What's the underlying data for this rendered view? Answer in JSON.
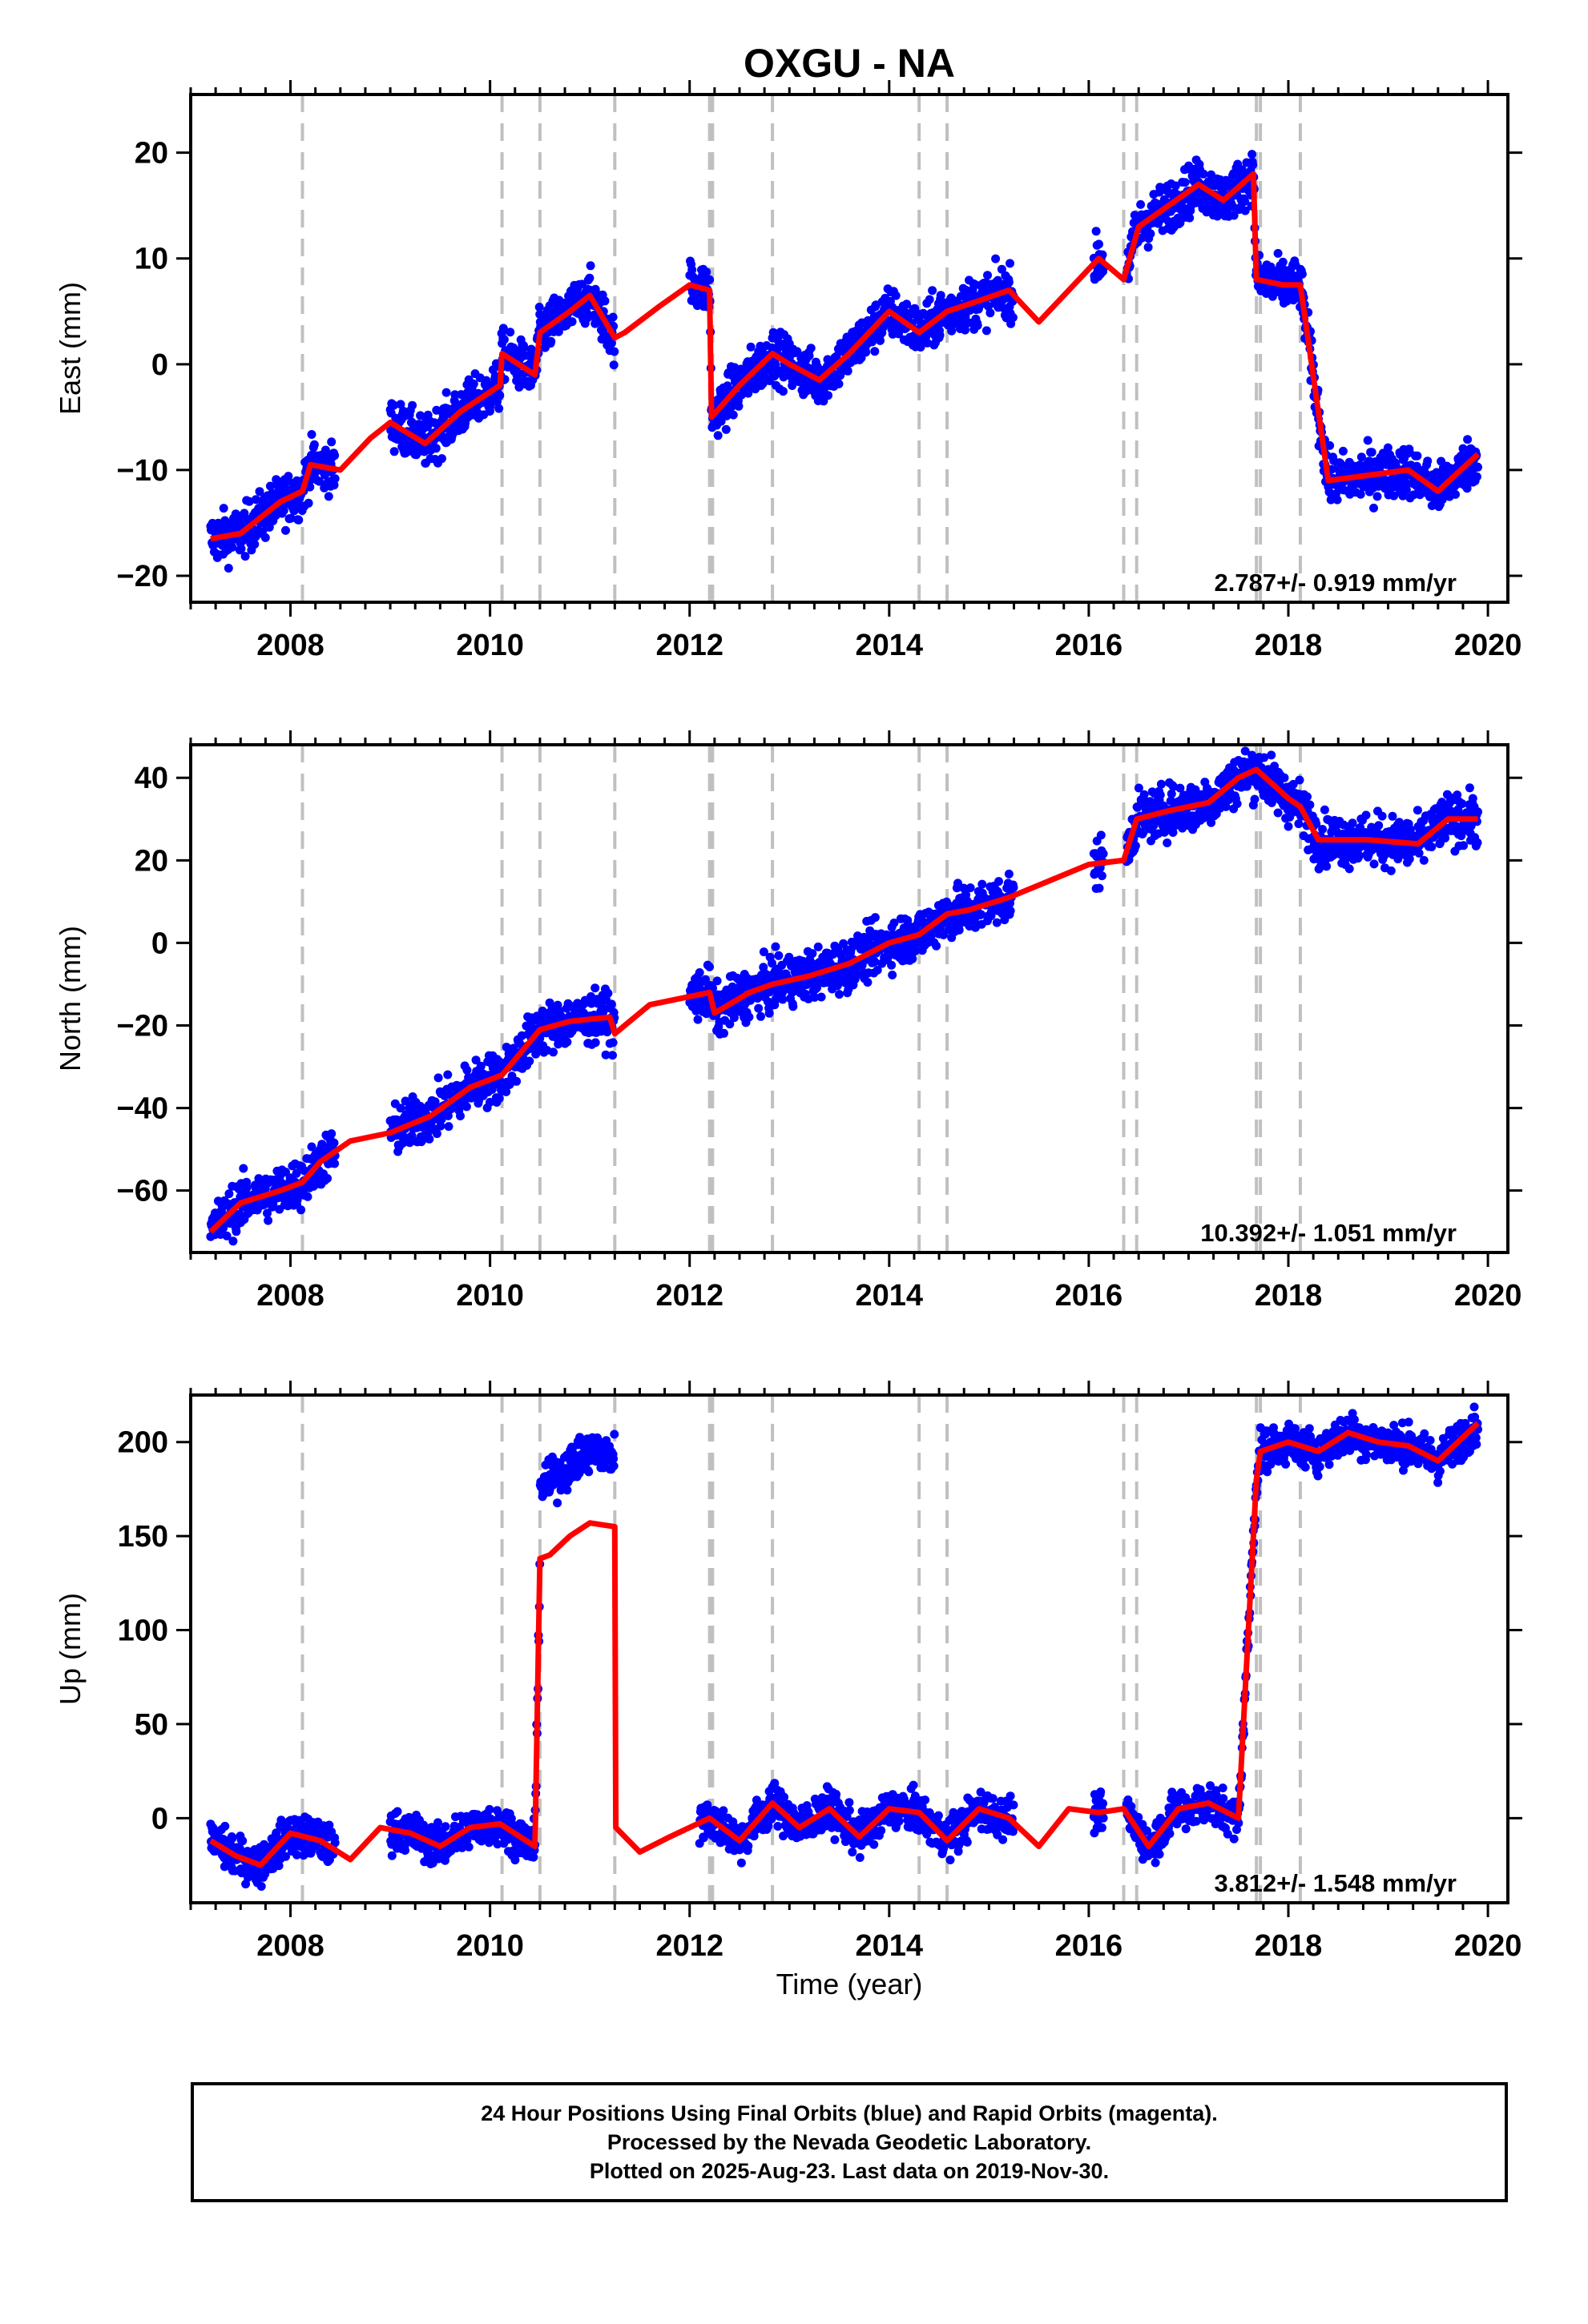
{
  "chart_data": {
    "type": "scatter",
    "title": "OXGU - NA",
    "xlabel": "Time (year)",
    "xlim": [
      2007.0,
      2020.2
    ],
    "xticks": [
      2008,
      2010,
      2012,
      2014,
      2016,
      2018,
      2020
    ],
    "xtick_labels": [
      "2008",
      "2010",
      "2012",
      "2014",
      "2016",
      "2018",
      "2020"
    ],
    "event_lines": [
      2008.12,
      2010.12,
      2010.5,
      2011.25,
      2012.2,
      2012.23,
      2012.83,
      2014.3,
      2014.58,
      2016.35,
      2016.48,
      2017.68,
      2017.72,
      2018.12
    ],
    "colors": {
      "observations": "#0000ff",
      "model": "#ff0000",
      "event_lines": "#c0c0c0"
    },
    "panels": [
      {
        "ylabel": "East (mm)",
        "ylim": [
          -22.5,
          25.5
        ],
        "yticks": [
          -20,
          -10,
          0,
          10,
          20
        ],
        "ytick_labels": [
          "−20",
          "−10",
          "0",
          "10",
          "20"
        ],
        "rate": "2.787+/- 0.919 mm/yr",
        "series": [
          {
            "x": [
              2007.2,
              2007.5,
              2007.9,
              2008.12,
              2008.2,
              2008.5,
              2008.8,
              2009.0,
              2009.35,
              2009.7,
              2010.1,
              2010.12,
              2010.45,
              2010.5,
              2010.8,
              2011.0,
              2011.25,
              2011.35,
              2011.7,
              2012.0,
              2012.2,
              2012.22,
              2012.5,
              2012.83,
              2013.0,
              2013.3,
              2013.6,
              2014.0,
              2014.3,
              2014.58,
              2014.9,
              2015.2,
              2015.5,
              2015.8,
              2016.1,
              2016.35,
              2016.5,
              2016.8,
              2017.1,
              2017.35,
              2017.65,
              2017.68,
              2017.95,
              2018.12,
              2018.4,
              2018.8,
              2019.2,
              2019.5,
              2019.9
            ],
            "y": [
              -16.5,
              -16.0,
              -13.0,
              -12.0,
              -9.5,
              -10.0,
              -7.0,
              -5.5,
              -7.5,
              -4.5,
              -2.0,
              1.0,
              -1.0,
              3.0,
              5.0,
              6.5,
              2.5,
              3.0,
              5.5,
              7.5,
              7.0,
              -5.0,
              -2.0,
              1.0,
              0.0,
              -1.5,
              1.0,
              5.0,
              3.0,
              5.0,
              6.0,
              7.0,
              4.0,
              7.0,
              10.0,
              8.0,
              13.0,
              15.0,
              17.0,
              15.5,
              18.0,
              8.0,
              7.5,
              7.5,
              -11.0,
              -10.5,
              -10.0,
              -12.0,
              -8.5
            ]
          }
        ]
      },
      {
        "ylabel": "North (mm)",
        "ylim": [
          -75,
          48
        ],
        "yticks": [
          -60,
          -40,
          -20,
          0,
          20,
          40
        ],
        "ytick_labels": [
          "−60",
          "−40",
          "−20",
          "0",
          "20",
          "40"
        ],
        "rate": "10.392+/- 1.051 mm/yr",
        "series": [
          {
            "x": [
              2007.2,
              2007.5,
              2007.9,
              2008.12,
              2008.3,
              2008.6,
              2009.0,
              2009.4,
              2009.8,
              2010.12,
              2010.5,
              2010.8,
              2011.2,
              2011.25,
              2011.6,
              2012.0,
              2012.2,
              2012.25,
              2012.6,
              2012.83,
              2013.2,
              2013.6,
              2014.0,
              2014.3,
              2014.58,
              2014.8,
              2015.2,
              2015.6,
              2016.0,
              2016.35,
              2016.48,
              2016.8,
              2017.2,
              2017.5,
              2017.68,
              2018.0,
              2018.12,
              2018.3,
              2018.8,
              2019.3,
              2019.6,
              2019.9
            ],
            "y": [
              -70,
              -63,
              -60,
              -58,
              -53,
              -48,
              -46,
              -42,
              -35,
              -32,
              -21,
              -19,
              -18,
              -22,
              -15,
              -13,
              -12,
              -17,
              -12,
              -10,
              -8,
              -5,
              0,
              2,
              7,
              8,
              11,
              15,
              19,
              20,
              30,
              32,
              34,
              40,
              42,
              35,
              33,
              25,
              25,
              24,
              30,
              30
            ]
          }
        ]
      },
      {
        "ylabel": "Up (mm)",
        "ylim": [
          -45,
          225
        ],
        "yticks": [
          0,
          50,
          100,
          150,
          200
        ],
        "ytick_labels": [
          "0",
          "50",
          "100",
          "150",
          "200"
        ],
        "rate": "3.812+/- 1.548 mm/yr",
        "series": [
          {
            "x": [
              2007.2,
              2007.45,
              2007.7,
              2008.0,
              2008.3,
              2008.6,
              2008.9,
              2009.2,
              2009.5,
              2009.8,
              2010.1,
              2010.45,
              2010.5,
              2010.6,
              2010.8,
              2011.0,
              2011.25,
              2011.26,
              2011.5,
              2011.8,
              2012.2,
              2012.5,
              2012.83,
              2013.1,
              2013.4,
              2013.7,
              2014.0,
              2014.3,
              2014.58,
              2014.9,
              2015.2,
              2015.5,
              2015.8,
              2016.1,
              2016.35,
              2016.6,
              2016.9,
              2017.2,
              2017.5,
              2017.68,
              2017.72,
              2018.0,
              2018.3,
              2018.6,
              2018.9,
              2019.2,
              2019.5,
              2019.9
            ],
            "y": [
              -12,
              -20,
              -25,
              -8,
              -12,
              -22,
              -5,
              -8,
              -15,
              -5,
              -3,
              -15,
              138,
              140,
              150,
              157,
              155,
              -5,
              -18,
              -10,
              0,
              -12,
              8,
              -5,
              5,
              -10,
              5,
              3,
              -12,
              5,
              0,
              -15,
              5,
              3,
              5,
              -15,
              5,
              8,
              0,
              180,
              195,
              200,
              195,
              205,
              200,
              198,
              190,
              210
            ]
          }
        ]
      }
    ]
  },
  "footer": {
    "line1": "24 Hour Positions Using Final Orbits (blue) and Rapid Orbits (magenta).",
    "line2": "Processed by the Nevada Geodetic Laboratory.",
    "line3": "Plotted on 2025-Aug-23. Last data on 2019-Nov-30."
  }
}
